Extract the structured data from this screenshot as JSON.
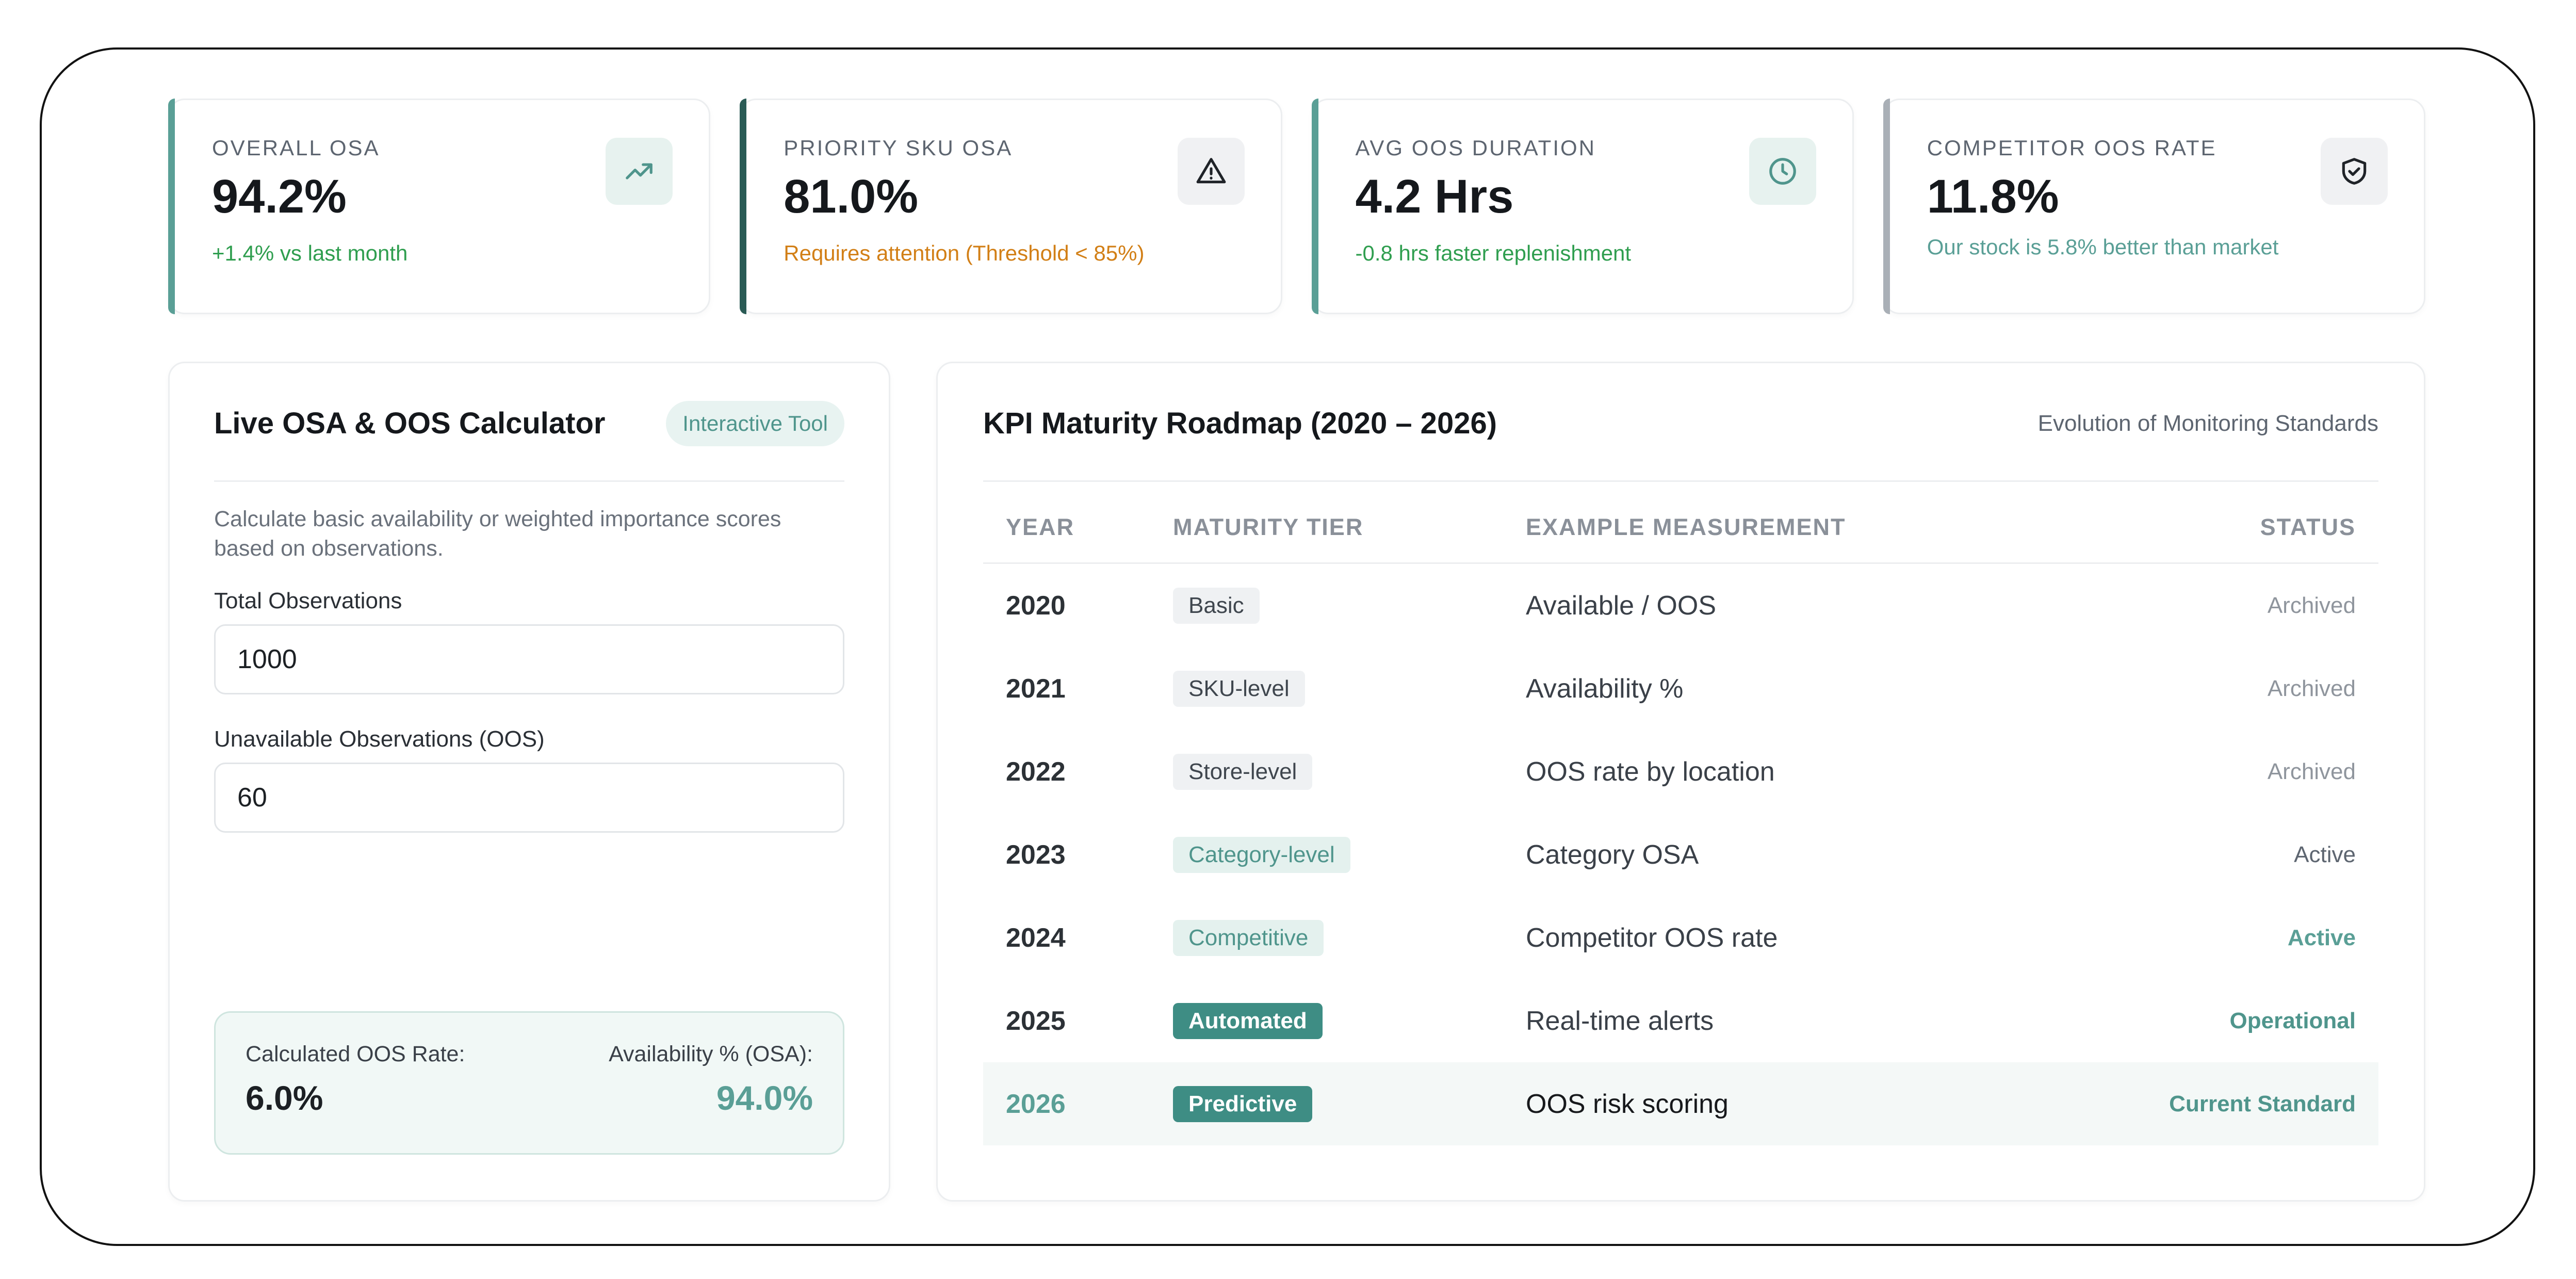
{
  "colors": {
    "accent_teal": "#5a9f96",
    "accent_dark_teal": "#2a5b55",
    "accent_gray": "#a9afb6",
    "positive_green": "#2f9e4f",
    "warning_orange": "#d27f16"
  },
  "kpis": [
    {
      "label": "OVERALL OSA",
      "value": "94.2%",
      "sub": "+1.4% vs last month",
      "icon": "trending-up-icon"
    },
    {
      "label": "PRIORITY SKU OSA",
      "value": "81.0%",
      "sub": "Requires attention (Threshold < 85%)",
      "icon": "alert-triangle-icon"
    },
    {
      "label": "AVG OOS DURATION",
      "value": "4.2 Hrs",
      "sub": "-0.8 hrs faster replenishment",
      "icon": "clock-icon"
    },
    {
      "label": "COMPETITOR OOS RATE",
      "value": "11.8%",
      "sub": "Our stock is 5.8% better than market",
      "icon": "shield-check-icon"
    }
  ],
  "calculator": {
    "title": "Live OSA & OOS Calculator",
    "tag": "Interactive Tool",
    "description": "Calculate basic availability or weighted importance scores based on observations.",
    "total_label": "Total Observations",
    "total_value": "1000",
    "unavailable_label": "Unavailable Observations (OOS)",
    "unavailable_value": "60",
    "result_oos_label": "Calculated OOS Rate:",
    "result_oos_value": "6.0%",
    "result_osa_label": "Availability % (OSA):",
    "result_osa_value": "94.0%"
  },
  "roadmap": {
    "title": "KPI Maturity Roadmap (2020 – 2026)",
    "subtitle": "Evolution of Monitoring Standards",
    "columns": [
      "YEAR",
      "MATURITY TIER",
      "EXAMPLE MEASUREMENT",
      "STATUS"
    ],
    "rows": [
      {
        "year": "2020",
        "tier": "Basic",
        "measurement": "Available / OOS",
        "status": "Archived"
      },
      {
        "year": "2021",
        "tier": "SKU-level",
        "measurement": "Availability %",
        "status": "Archived"
      },
      {
        "year": "2022",
        "tier": "Store-level",
        "measurement": "OOS rate by location",
        "status": "Archived"
      },
      {
        "year": "2023",
        "tier": "Category-level",
        "measurement": "Category OSA",
        "status": "Active"
      },
      {
        "year": "2024",
        "tier": "Competitive",
        "measurement": "Competitor OOS rate",
        "status": "Active"
      },
      {
        "year": "2025",
        "tier": "Automated",
        "measurement": "Real-time alerts",
        "status": "Operational"
      },
      {
        "year": "2026",
        "tier": "Predictive",
        "measurement": "OOS risk scoring",
        "status": "Current Standard"
      }
    ]
  }
}
